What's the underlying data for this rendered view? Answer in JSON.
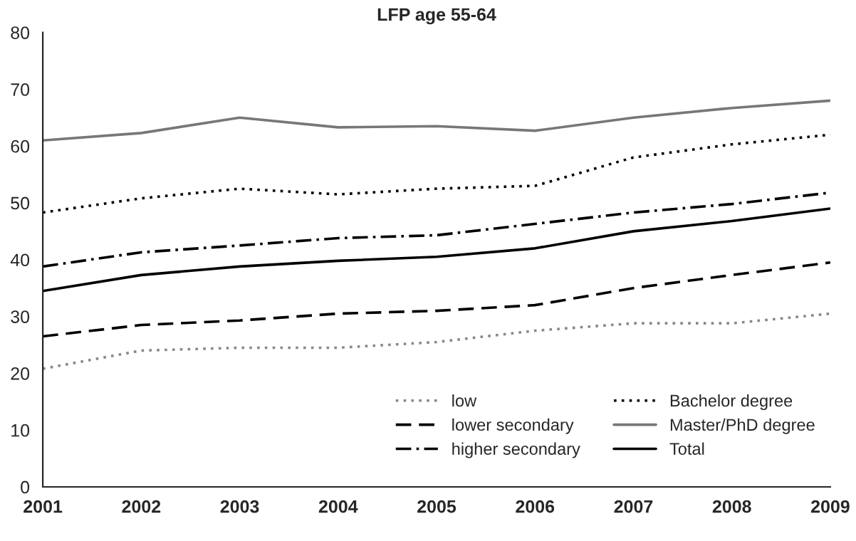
{
  "chart_data": {
    "type": "line",
    "title": "LFP age 55-64",
    "x": [
      2001,
      2002,
      2003,
      2004,
      2005,
      2006,
      2007,
      2008,
      2009
    ],
    "xlim": [
      2001,
      2009
    ],
    "xticks": [
      2001,
      2002,
      2003,
      2004,
      2005,
      2006,
      2007,
      2008,
      2009
    ],
    "ylim": [
      0,
      80
    ],
    "yticks": [
      0,
      10,
      20,
      30,
      40,
      50,
      60,
      70,
      80
    ],
    "grid": false,
    "legend": "bottom right",
    "series": [
      {
        "name": "low",
        "color": "#888888",
        "line_style": "dotted",
        "values": [
          20.8,
          24,
          24.5,
          24.5,
          25.5,
          27.5,
          28.8,
          28.8,
          30.5
        ]
      },
      {
        "name": "lower secondary",
        "color": "#000000",
        "line_style": "dashed",
        "values": [
          26.5,
          28.5,
          29.3,
          30.5,
          31,
          32,
          35,
          37.3,
          39.5
        ]
      },
      {
        "name": "higher secondary",
        "color": "#000000",
        "line_style": "dashdot",
        "values": [
          38.8,
          41.3,
          42.5,
          43.8,
          44.3,
          46.3,
          48.3,
          49.8,
          51.8
        ]
      },
      {
        "name": "Bachelor degree",
        "color": "#000000",
        "line_style": "dotted",
        "values": [
          48.3,
          50.8,
          52.5,
          51.5,
          52.5,
          53,
          58,
          60.3,
          62
        ]
      },
      {
        "name": "Master/PhD degree",
        "color": "#777777",
        "line_style": "solid",
        "values": [
          61,
          62.3,
          65,
          63.3,
          63.5,
          62.7,
          65,
          66.7,
          68
        ]
      },
      {
        "name": "Total",
        "color": "#000000",
        "line_style": "solid",
        "values": [
          34.5,
          37.3,
          38.8,
          39.8,
          40.5,
          42,
          45,
          46.8,
          49
        ]
      }
    ]
  }
}
